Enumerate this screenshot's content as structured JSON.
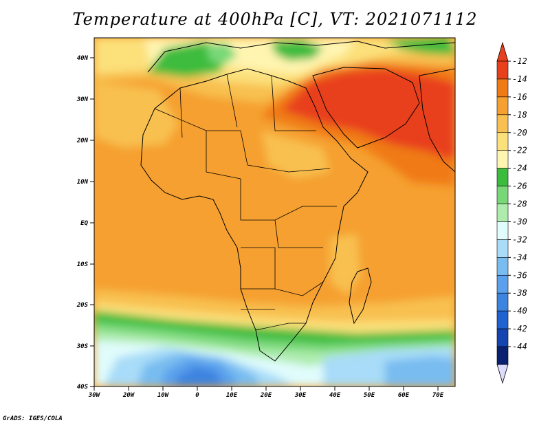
{
  "title": "Temperature at 400hPa [C], VT: 2021071112",
  "credit": "GrADS: IGES/COLA",
  "map": {
    "lat_labels": [
      "40N",
      "30N",
      "20N",
      "10N",
      "EQ",
      "10S",
      "20S",
      "30S",
      "40S"
    ],
    "lon_labels": [
      "30W",
      "20W",
      "10W",
      "0",
      "10E",
      "20E",
      "30E",
      "40E",
      "50E",
      "60E",
      "70E"
    ],
    "lat_range": [
      -40,
      45
    ],
    "lon_range": [
      -30,
      75
    ],
    "variable": "Temperature",
    "level": "400hPa",
    "units": "C",
    "valid_time": "2021071112"
  },
  "colorbar": {
    "labels": [
      "-12",
      "-14",
      "-16",
      "-18",
      "-20",
      "-22",
      "-24",
      "-26",
      "-28",
      "-30",
      "-32",
      "-34",
      "-36",
      "-38",
      "-40",
      "-42",
      "-44"
    ],
    "colors": [
      "#e8401a",
      "#f07a14",
      "#f5a030",
      "#f8c050",
      "#fce07a",
      "#fff4b0",
      "#3cbc3c",
      "#78d878",
      "#aeecae",
      "#e0fcfc",
      "#a8dcf8",
      "#78bcf0",
      "#5aa0ec",
      "#3c84e0",
      "#2062d0",
      "#1444b0",
      "#0a2070"
    ],
    "top_arrow_color": "#e8401a",
    "bottom_arrow_color": "#dcdcfc"
  }
}
